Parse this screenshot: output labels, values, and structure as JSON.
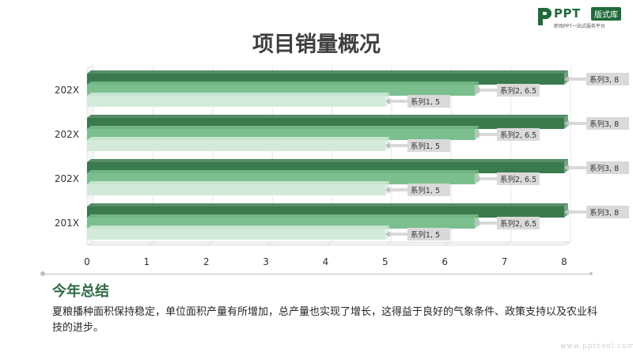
{
  "brand": {
    "name": "PPT",
    "badge": "版式库",
    "tagline": "职场PPT一站式服务平台",
    "watermark": "www.pptcool.com"
  },
  "title": "项目销量概况",
  "chart_data": {
    "type": "bar",
    "orientation": "horizontal",
    "categories": [
      "202X",
      "202X",
      "202X",
      "201X"
    ],
    "series": [
      {
        "name": "系列1",
        "values": [
          5,
          5,
          5,
          5
        ],
        "color": "#d3eadb"
      },
      {
        "name": "系列2",
        "values": [
          6.5,
          6.5,
          6.5,
          6.5
        ],
        "color": "#7bbf8f"
      },
      {
        "name": "系列3",
        "values": [
          8,
          8,
          8,
          8
        ],
        "color": "#3a7a4d"
      }
    ],
    "data_labels": [
      "系列1, 5",
      "系列2, 6.5",
      "系列3, 8"
    ],
    "x_ticks": [
      "0",
      "1",
      "2",
      "3",
      "4",
      "5",
      "6",
      "7",
      "8"
    ],
    "xlim": [
      0,
      8
    ],
    "grid": true,
    "legend": "none"
  },
  "summary": {
    "heading": "今年总结",
    "text": "夏粮播种面积保持稳定，单位面积产量有所增加，总产量也实现了增长，这得益于良好的气象条件、政策支持以及农业科技的进步。"
  }
}
